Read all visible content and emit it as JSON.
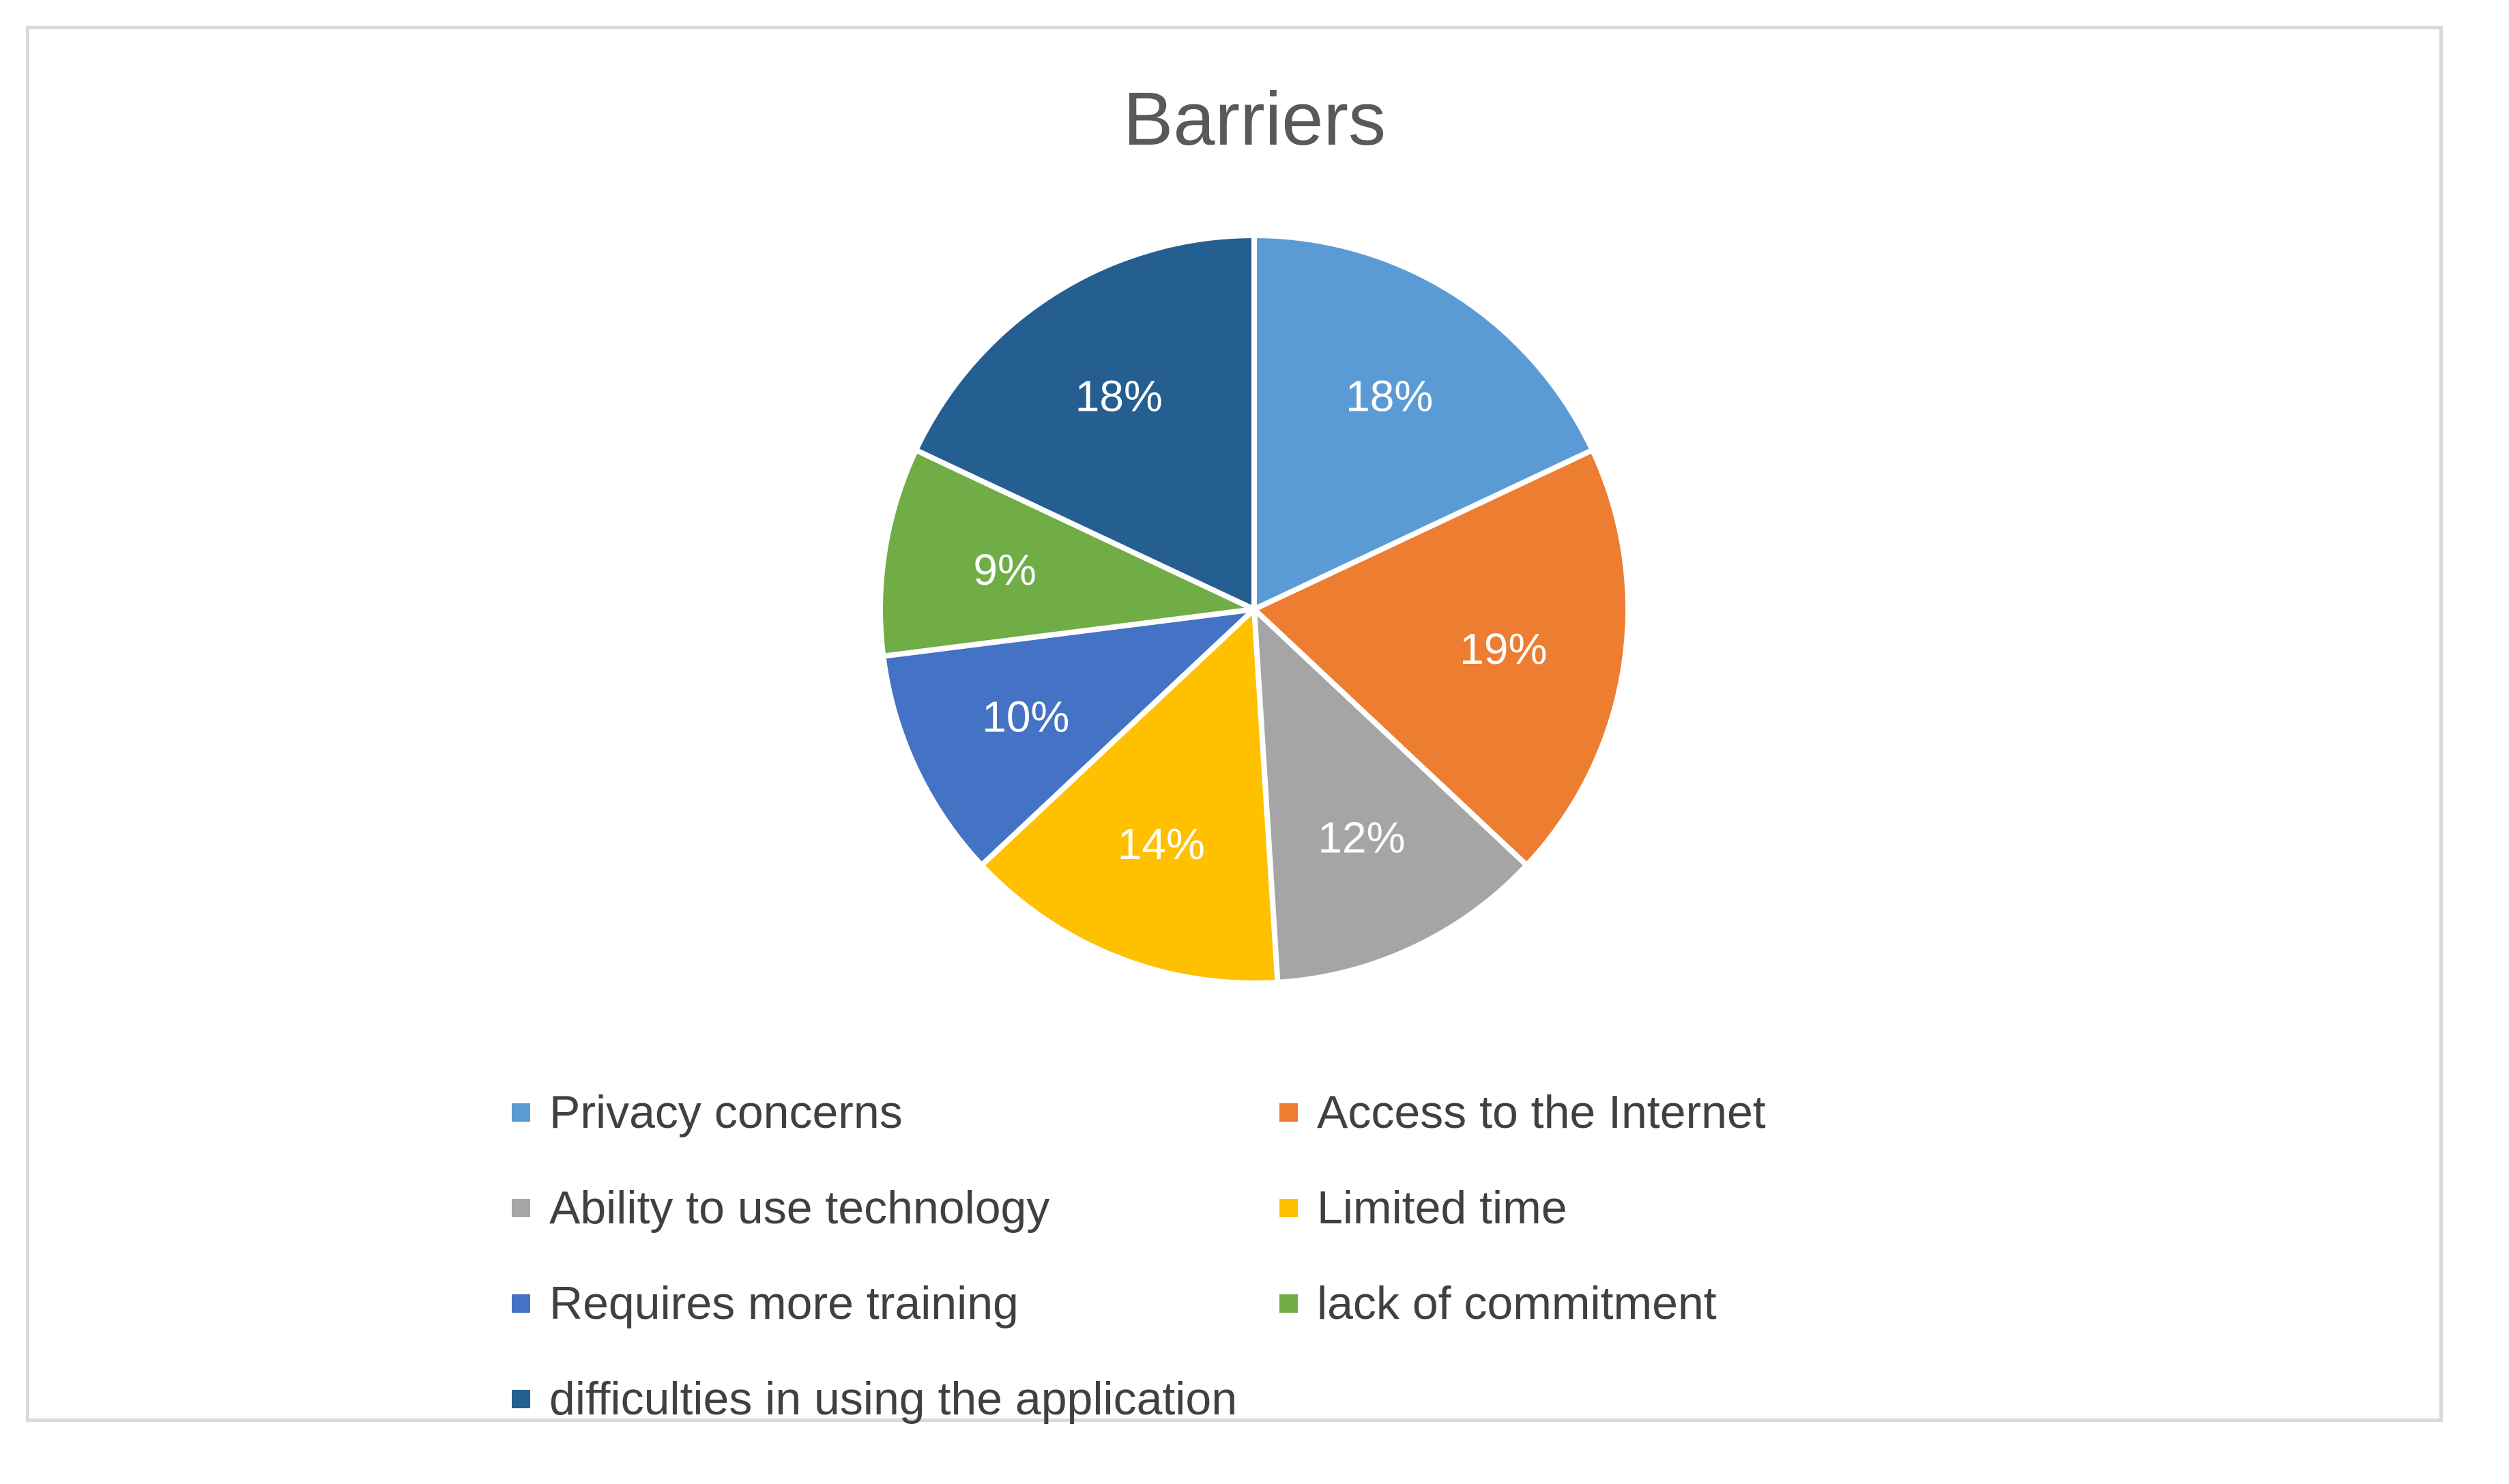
{
  "chart_data": {
    "type": "pie",
    "title": "Barriers",
    "slices": [
      {
        "label": "Privacy concerns",
        "value": 18,
        "display": "18%",
        "color": "#5b9bd5"
      },
      {
        "label": "Access to the Internet",
        "value": 19,
        "display": "19%",
        "color": "#ed7d31"
      },
      {
        "label": "Ability to use technology",
        "value": 12,
        "display": "12%",
        "color": "#a5a5a5"
      },
      {
        "label": "Limited time",
        "value": 14,
        "display": "14%",
        "color": "#ffc000"
      },
      {
        "label": "Requires more training",
        "value": 10,
        "display": "10%",
        "color": "#4472c4"
      },
      {
        "label": "lack of commitment",
        "value": 9,
        "display": "9%",
        "color": "#70ad47"
      },
      {
        "label": "difficulties in using the application",
        "value": 18,
        "display": "18%",
        "color": "#255e91"
      }
    ],
    "legend_position": "bottom",
    "label_color": "#ffffff",
    "separator_color": "#ffffff"
  }
}
